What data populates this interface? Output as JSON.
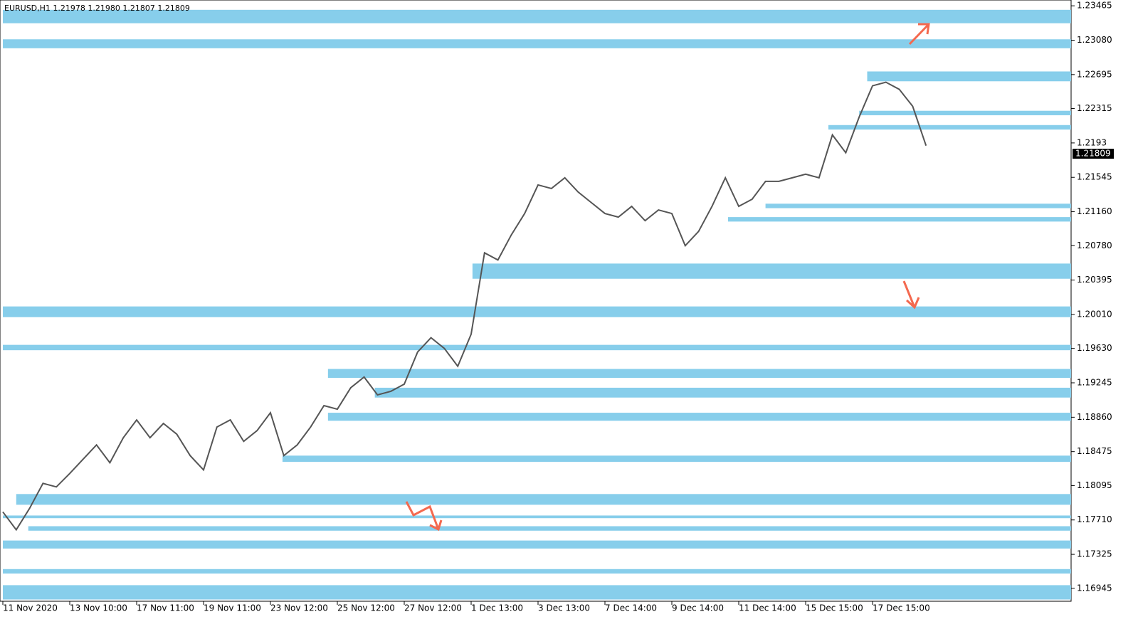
{
  "chart_data": {
    "type": "line",
    "title": "EURUSD,H1  1.21978 1.21980 1.21807 1.21809",
    "last_price": 1.21809,
    "categories": [
      "11 Nov 2020",
      null,
      null,
      null,
      null,
      "13 Nov 10:00",
      null,
      null,
      null,
      null,
      "17 Nov 11:00",
      null,
      null,
      null,
      null,
      "19 Nov 11:00",
      null,
      null,
      null,
      null,
      "23 Nov 12:00",
      null,
      null,
      null,
      null,
      "25 Nov 12:00",
      null,
      null,
      null,
      null,
      "27 Nov 12:00",
      null,
      null,
      null,
      null,
      "1 Dec 13:00",
      null,
      null,
      null,
      null,
      "3 Dec 13:00",
      null,
      null,
      null,
      null,
      "7 Dec 14:00",
      null,
      null,
      null,
      null,
      "9 Dec 14:00",
      null,
      null,
      null,
      null,
      "11 Dec 14:00",
      null,
      null,
      null,
      null,
      "15 Dec 15:00",
      null,
      null,
      null,
      null,
      "17 Dec 15:00",
      null,
      null,
      null,
      null
    ],
    "series": [
      {
        "name": "EURUSD,H1",
        "color": "#555555",
        "values": [
          1.178,
          1.176,
          1.1784,
          1.1812,
          1.1808,
          1.1823,
          1.1839,
          1.1855,
          1.1835,
          1.1863,
          1.1883,
          1.1863,
          1.1879,
          1.1867,
          1.1843,
          1.1827,
          1.1875,
          1.1883,
          1.1859,
          1.1871,
          1.1891,
          1.1843,
          1.1855,
          1.1875,
          1.1899,
          1.1895,
          1.1919,
          1.1931,
          1.1911,
          1.1915,
          1.1923,
          1.1959,
          1.1975,
          1.1963,
          1.1943,
          1.1979,
          1.207,
          1.2062,
          1.209,
          1.2114,
          1.2146,
          1.2142,
          1.2154,
          1.2138,
          1.2126,
          1.2114,
          1.211,
          1.2122,
          1.2106,
          1.2118,
          1.2114,
          1.2078,
          1.2094,
          1.2122,
          1.2154,
          1.2122,
          1.213,
          1.215,
          1.215,
          1.2154,
          1.2158,
          1.2154,
          1.2202,
          1.2182,
          1.2222,
          1.2257,
          1.2261,
          1.2253,
          1.2234,
          1.219
        ]
      }
    ],
    "zones": [
      {
        "high": 1.2342,
        "low": 1.2327,
        "from": 0
      },
      {
        "high": 1.2309,
        "low": 1.2299,
        "from": 0
      },
      {
        "high": 1.2273,
        "low": 1.2262,
        "from": 64.6
      },
      {
        "high": 1.2229,
        "low": 1.2224,
        "from": 64
      },
      {
        "high": 1.2213,
        "low": 1.2208,
        "from": 61.7
      },
      {
        "high": 1.2125,
        "low": 1.212,
        "from": 57
      },
      {
        "high": 1.211,
        "low": 1.2105,
        "from": 54.2
      },
      {
        "high": 1.2058,
        "low": 1.2041,
        "from": 35.1
      },
      {
        "high": 1.201,
        "low": 1.1998,
        "from": 0
      },
      {
        "high": 1.1967,
        "low": 1.1961,
        "from": 0
      },
      {
        "high": 1.194,
        "low": 1.193,
        "from": 24.3
      },
      {
        "high": 1.1919,
        "low": 1.1908,
        "from": 27.8
      },
      {
        "high": 1.1891,
        "low": 1.1882,
        "from": 24.3
      },
      {
        "high": 1.1843,
        "low": 1.1836,
        "from": 20.9
      },
      {
        "high": 1.18,
        "low": 1.1788,
        "from": 1
      },
      {
        "high": 1.1776,
        "low": 1.1773,
        "from": 0
      },
      {
        "high": 1.1764,
        "low": 1.1759,
        "from": 1.9
      },
      {
        "high": 1.1748,
        "low": 1.1739,
        "from": 0
      },
      {
        "high": 1.1716,
        "low": 1.1711,
        "from": 0
      },
      {
        "high": 1.1698,
        "low": 1.1682,
        "from": 0
      }
    ],
    "zone_color": "#87ceeb",
    "ylim": [
      1.168,
      1.2353
    ],
    "yticks": [
      1.23465,
      {
        "value": 1.2308,
        "label": "1.23080"
      },
      1.22695,
      1.22315,
      1.2193,
      1.21545,
      {
        "value": 1.2116,
        "label": "1.21160"
      },
      {
        "value": 1.2078,
        "label": "1.20780"
      },
      1.20395,
      {
        "value": 1.2001,
        "label": "1.20010"
      },
      {
        "value": 1.1963,
        "label": "1.19630"
      },
      1.19245,
      {
        "value": 1.1886,
        "label": "1.18860"
      },
      1.18475,
      1.18095,
      {
        "value": 1.1771,
        "label": "1.17710"
      },
      1.17325,
      1.16945
    ]
  }
}
